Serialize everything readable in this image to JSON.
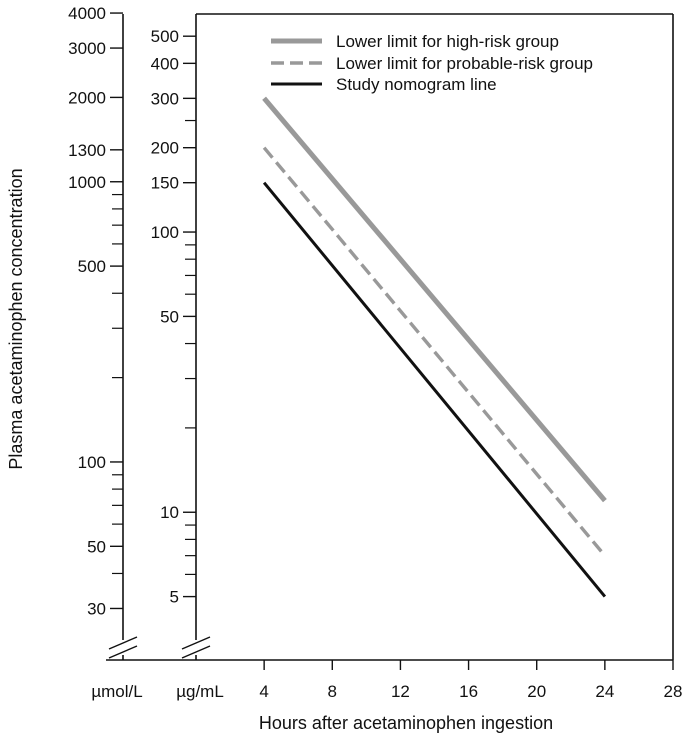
{
  "chart_data": {
    "type": "line",
    "xlabel": "Hours after acetaminophen ingestion",
    "ylabel": "Plasma acetaminophen concentration",
    "x_ticks": [
      4,
      8,
      12,
      16,
      20,
      24,
      28
    ],
    "xlim": [
      0,
      28
    ],
    "y_scale": "log",
    "unit_labels": {
      "umol": "µmol/L",
      "ug": "µg/mL"
    },
    "ylim_ug_per_ml": [
      3.5,
      600
    ],
    "umol_axis": {
      "label": "µmol/L",
      "tick_labels": [
        "4000",
        "3000",
        "2000",
        "1300",
        "1000",
        "500",
        "100",
        "50",
        "30"
      ],
      "tick_values": [
        4000,
        3000,
        2000,
        1300,
        1000,
        500,
        100,
        50,
        30
      ],
      "minor_ticks": [
        900,
        800,
        700,
        600,
        400,
        300,
        200,
        90,
        80,
        70,
        60,
        40
      ]
    },
    "ug_axis": {
      "label": "µg/mL",
      "tick_labels": [
        "500",
        "400",
        "300",
        "200",
        "150",
        "100",
        "50",
        "10",
        "5"
      ],
      "tick_values": [
        500,
        400,
        300,
        200,
        150,
        100,
        50,
        10,
        5
      ],
      "minor_ticks": [
        250,
        90,
        80,
        70,
        60,
        40,
        30,
        20,
        9,
        8,
        7,
        6
      ]
    },
    "series": [
      {
        "name": "Lower limit for high-risk group",
        "x": [
          4,
          24
        ],
        "y": [
          300,
          11
        ],
        "color": "#999999",
        "style": "solid-thick"
      },
      {
        "name": "Lower limit for probable-risk group",
        "x": [
          4,
          24
        ],
        "y": [
          200,
          7
        ],
        "color": "#999999",
        "style": "dashed"
      },
      {
        "name": "Study nomogram line",
        "x": [
          4,
          24
        ],
        "y": [
          150,
          5
        ],
        "color": "#111111",
        "style": "solid"
      }
    ],
    "legend": "top-right",
    "grid": false
  }
}
